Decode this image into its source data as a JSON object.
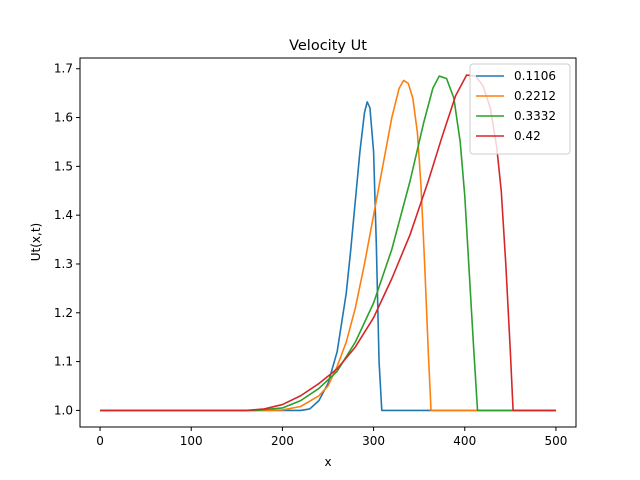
{
  "chart_data": {
    "type": "line",
    "title": "Velocity Ut",
    "xlabel": "x",
    "ylabel": "Ut(x,t)",
    "xlim": [
      -22,
      522
    ],
    "ylim": [
      0.966,
      1.722
    ],
    "xticks": [
      0,
      100,
      200,
      300,
      400,
      500
    ],
    "yticks": [
      1.0,
      1.1,
      1.2,
      1.3,
      1.4,
      1.5,
      1.6,
      1.7
    ],
    "ytick_labels": [
      "1.0",
      "1.1",
      "1.2",
      "1.3",
      "1.4",
      "1.5",
      "1.6",
      "1.7"
    ],
    "grid": false,
    "legend_position": "top-right",
    "series": [
      {
        "name": "0.1106",
        "color": "#1f77b4",
        "x": [
          0,
          200,
          220,
          230,
          240,
          250,
          260,
          270,
          275,
          280,
          285,
          290,
          293,
          296,
          300,
          303,
          306,
          309,
          312,
          350,
          500
        ],
        "y": [
          1.0,
          1.0,
          1.0,
          1.003,
          1.02,
          1.055,
          1.12,
          1.24,
          1.33,
          1.43,
          1.53,
          1.61,
          1.632,
          1.62,
          1.53,
          1.34,
          1.1,
          1.0,
          1.0,
          1.0,
          1.0
        ]
      },
      {
        "name": "0.2212",
        "color": "#ff7f0e",
        "x": [
          0,
          180,
          200,
          220,
          240,
          250,
          260,
          270,
          280,
          290,
          300,
          310,
          320,
          328,
          333,
          338,
          343,
          348,
          352,
          356,
          360,
          363,
          400,
          500
        ],
        "y": [
          1.0,
          1.0,
          1.001,
          1.008,
          1.03,
          1.05,
          1.09,
          1.14,
          1.21,
          1.3,
          1.4,
          1.5,
          1.6,
          1.66,
          1.676,
          1.67,
          1.64,
          1.57,
          1.46,
          1.3,
          1.12,
          1.0,
          1.0,
          1.0
        ]
      },
      {
        "name": "0.3332",
        "color": "#2ca02c",
        "x": [
          0,
          170,
          200,
          220,
          240,
          260,
          280,
          300,
          320,
          340,
          355,
          365,
          372,
          380,
          388,
          395,
          400,
          405,
          410,
          414,
          450,
          500
        ],
        "y": [
          1.0,
          1.0,
          1.005,
          1.02,
          1.045,
          1.08,
          1.14,
          1.22,
          1.33,
          1.47,
          1.59,
          1.66,
          1.685,
          1.68,
          1.64,
          1.55,
          1.44,
          1.28,
          1.12,
          1.0,
          1.0,
          1.0
        ]
      },
      {
        "name": "0.42",
        "color": "#d62728",
        "x": [
          0,
          160,
          180,
          200,
          220,
          240,
          260,
          280,
          300,
          320,
          340,
          360,
          375,
          390,
          402,
          412,
          420,
          428,
          435,
          440,
          445,
          450,
          453,
          500
        ],
        "y": [
          1.0,
          1.0,
          1.003,
          1.012,
          1.03,
          1.055,
          1.085,
          1.13,
          1.19,
          1.27,
          1.36,
          1.47,
          1.56,
          1.645,
          1.687,
          1.685,
          1.665,
          1.62,
          1.54,
          1.45,
          1.3,
          1.12,
          1.0,
          1.0
        ]
      }
    ]
  }
}
